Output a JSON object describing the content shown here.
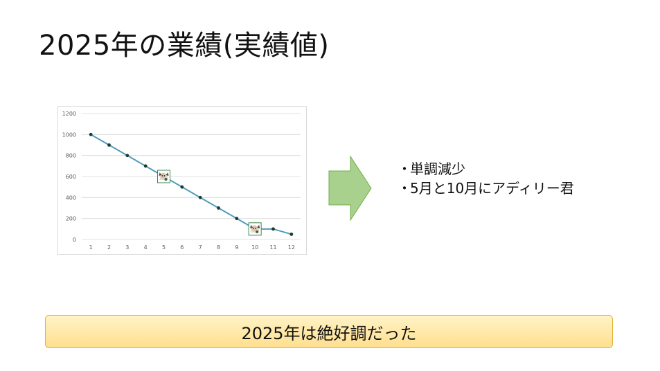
{
  "slide": {
    "title": "2025年の業績(実績値)",
    "bullets": [
      "単調減少",
      "5月と10月にアディリー君"
    ],
    "bullet_marker": "・",
    "banner": "2025年は絶好調だった"
  },
  "colors": {
    "line": "#4f9bbb",
    "marker": "#1b3b2f",
    "gridline": "#d9d9d9",
    "arrow_fill": "#a9d18e",
    "arrow_stroke": "#70ad47",
    "banner_border": "#e0b33a"
  },
  "chart_data": {
    "type": "line",
    "categories": [
      "1",
      "2",
      "3",
      "4",
      "5",
      "6",
      "7",
      "8",
      "9",
      "10",
      "11",
      "12"
    ],
    "series": [
      {
        "values": [
          1000,
          900,
          800,
          700,
          600,
          500,
          400,
          300,
          200,
          100,
          100,
          50
        ]
      }
    ],
    "ylim": [
      0,
      1200
    ],
    "yticks": [
      "0",
      "200",
      "400",
      "600",
      "800",
      "1000",
      "1200"
    ],
    "grid": true,
    "legend": "none",
    "annotations": [
      {
        "category": "5",
        "icon": "character-icon"
      },
      {
        "category": "10",
        "icon": "character-icon"
      }
    ]
  }
}
